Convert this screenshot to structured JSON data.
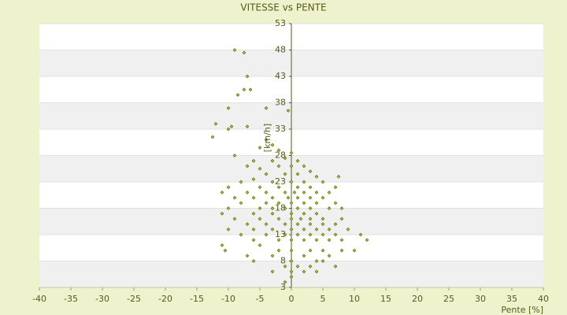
{
  "chart_data": {
    "type": "scatter",
    "title": "VITESSE vs PENTE",
    "x_label": "Pente [%]",
    "y_label": "[km/h]",
    "color": "#5c6b00",
    "xlim": [
      -40,
      40
    ],
    "xticks": [
      -40,
      -35,
      -30,
      -25,
      -20,
      -15,
      -10,
      -5,
      0,
      5,
      10,
      15,
      20,
      25,
      30,
      35,
      40
    ],
    "ylim": [
      3,
      53
    ],
    "yticks": [
      3,
      8,
      13,
      18,
      23,
      28,
      33,
      38,
      43,
      48,
      53
    ],
    "grid": true,
    "x": [
      -9,
      -7.5,
      -7,
      -6.5,
      -7.5,
      -8.5,
      -10,
      -4,
      -12,
      -10,
      -9.5,
      -12.5,
      -0.5,
      -7,
      -9,
      -4,
      -3,
      -5,
      -2,
      0,
      1,
      -1,
      -3,
      -6,
      -7,
      -5,
      -2,
      0,
      2,
      3,
      -4,
      -1,
      1,
      4,
      7.5,
      -8,
      -6,
      -3,
      0,
      2,
      5,
      -10,
      -5,
      -2,
      1,
      3,
      7,
      -11,
      -7,
      -4,
      -1,
      0.5,
      2,
      4,
      6,
      -9,
      -6,
      -3,
      -0.5,
      1,
      3,
      5,
      -8,
      -4,
      -2,
      0,
      2,
      4,
      7,
      -10,
      -5,
      -3,
      -1,
      1,
      3,
      6,
      8,
      -11,
      -6,
      -3,
      0,
      2,
      4,
      -9,
      -5,
      -2,
      0,
      1.5,
      3,
      5,
      8,
      -7,
      -4,
      -1,
      1,
      3,
      5,
      7,
      -10,
      -6,
      -3,
      0,
      2,
      4,
      6,
      9,
      -8,
      -4,
      -1,
      1,
      3,
      5,
      7,
      11,
      12,
      -11,
      -6,
      -2,
      0,
      2,
      4,
      6,
      8,
      -10.5,
      -5,
      -2,
      0,
      3,
      5,
      8,
      10,
      -7,
      -3,
      0,
      2,
      4,
      6,
      -6,
      -1,
      1,
      3,
      5,
      7,
      -3,
      0,
      2,
      4,
      0,
      -1
    ],
    "y": [
      48,
      47.5,
      43,
      40.5,
      40.5,
      39.5,
      37,
      37,
      34,
      33,
      33.5,
      31.5,
      36.5,
      33.5,
      28,
      31,
      30,
      29.5,
      29,
      28.5,
      27,
      27.5,
      27,
      27,
      26,
      25.5,
      26,
      26,
      26,
      25,
      24.5,
      24.5,
      24.5,
      24,
      24,
      23,
      23.5,
      23,
      23,
      23,
      23,
      22,
      22,
      22,
      22,
      22,
      22,
      21,
      21,
      21,
      21,
      21,
      21,
      21,
      21,
      20,
      20,
      20,
      20,
      20,
      20,
      20,
      19,
      19,
      19,
      19,
      19,
      19,
      19,
      18,
      18,
      18,
      18,
      18,
      18,
      18,
      18,
      17,
      17,
      17,
      17,
      17,
      17,
      16,
      16,
      16,
      16,
      16,
      16,
      16,
      16,
      15,
      15,
      15,
      15,
      15,
      15,
      15,
      14,
      14,
      14,
      14,
      14,
      14,
      14,
      14,
      13,
      13,
      13,
      13,
      13,
      13,
      13,
      13,
      12,
      11,
      12,
      12,
      12,
      12,
      12,
      12,
      12,
      10,
      11,
      10,
      10,
      10,
      10,
      10,
      10,
      9,
      9,
      8,
      9,
      8,
      9,
      8,
      7,
      7,
      7,
      8,
      7,
      6,
      6,
      6,
      6,
      5,
      4
    ]
  }
}
